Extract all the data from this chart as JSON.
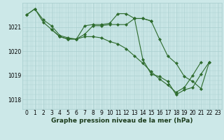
{
  "title": "Graphe pression niveau de la mer (hPa)",
  "bg_color": "#cce8e8",
  "grid_color": "#aacfcf",
  "line_color": "#2d6b2d",
  "marker_color": "#2d6b2d",
  "xlim": [
    -0.5,
    23.5
  ],
  "ylim": [
    1017.6,
    1022.0
  ],
  "yticks": [
    1018,
    1019,
    1020,
    1021
  ],
  "xticks": [
    0,
    1,
    2,
    3,
    4,
    5,
    6,
    7,
    8,
    9,
    10,
    11,
    12,
    13,
    14,
    15,
    16,
    17,
    18,
    19,
    20,
    21,
    22,
    23
  ],
  "series": [
    {
      "x": [
        0,
        1,
        2,
        3,
        4,
        5,
        6,
        7,
        8,
        9,
        10,
        11,
        12,
        13,
        14,
        15,
        16,
        17,
        18,
        19,
        20,
        21,
        22
      ],
      "y": [
        1021.5,
        1021.75,
        1021.3,
        1021.05,
        1020.65,
        1020.55,
        1020.5,
        1021.05,
        1021.1,
        1021.1,
        1021.15,
        1021.55,
        1021.55,
        1021.35,
        1019.65,
        1019.05,
        1018.95,
        1018.75,
        1018.2,
        1018.4,
        1018.5,
        1019.05,
        1019.55
      ]
    },
    {
      "x": [
        0,
        1,
        2,
        3,
        4,
        5,
        6,
        7,
        8,
        9,
        10,
        11,
        12,
        13,
        14,
        15,
        16,
        17,
        18,
        19,
        20,
        21
      ],
      "y": [
        1021.5,
        1021.75,
        1021.2,
        1020.9,
        1020.6,
        1020.5,
        1020.5,
        1020.6,
        1020.6,
        1020.55,
        1020.4,
        1020.3,
        1020.1,
        1019.8,
        1019.5,
        1019.15,
        1018.85,
        1018.6,
        1018.3,
        1018.5,
        1019.0,
        1019.55
      ]
    },
    {
      "x": [
        3,
        4,
        5,
        6,
        7,
        8,
        9,
        10,
        11,
        12,
        13,
        14,
        15
      ],
      "y": [
        1020.9,
        1020.6,
        1020.5,
        1020.5,
        1020.7,
        1021.05,
        1021.05,
        1021.1,
        1021.1,
        1021.1,
        1021.35,
        1021.35,
        1021.25
      ]
    },
    {
      "x": [
        13,
        14,
        15,
        16,
        17,
        18,
        19,
        20,
        21,
        22
      ],
      "y": [
        1021.35,
        1021.35,
        1021.25,
        1020.5,
        1019.8,
        1019.5,
        1018.95,
        1018.75,
        1018.45,
        1019.55
      ]
    }
  ]
}
